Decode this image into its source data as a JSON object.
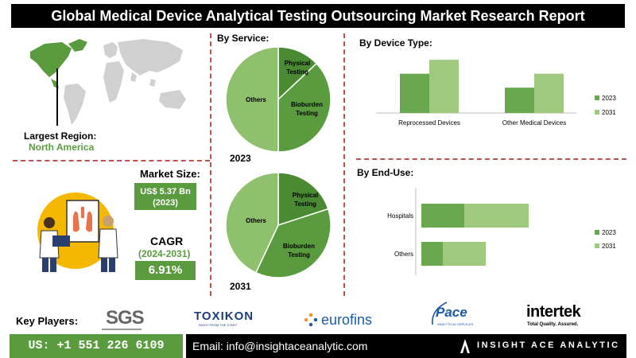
{
  "header": {
    "title": "Global Medical Device Analytical Testing Outsourcing Market Research Report"
  },
  "region": {
    "label": "Largest Region:",
    "value": "North America"
  },
  "market": {
    "size_label": "Market Size:",
    "size_value": "US$ 5.37 Bn",
    "size_year": "(2023)",
    "cagr_label": "CAGR",
    "cagr_period": "(2024-2031)",
    "cagr_value": "6.91%"
  },
  "colors": {
    "dark_green": "#5b9b40",
    "light_green": "#9ec97f",
    "mid_green": "#6aa84f",
    "red_dash": "#c0504d"
  },
  "chart_data": [
    {
      "type": "pie",
      "title": "By Service:",
      "subtitle": "2023",
      "labels": [
        "Physical Testing",
        "Bioburden Testing",
        "Others"
      ],
      "values": [
        13,
        37,
        50
      ]
    },
    {
      "type": "pie",
      "subtitle": "2031",
      "labels": [
        "Physical Testing",
        "Bioburden Testing",
        "Others"
      ],
      "values": [
        20,
        37,
        43
      ]
    },
    {
      "type": "bar",
      "title": "By  Device Type:",
      "categories": [
        "Reprocessed Devices",
        "Other Medical Devices"
      ],
      "series": [
        {
          "name": "2023",
          "values": [
            1.55,
            1.0
          ]
        },
        {
          "name": "2031",
          "values": [
            2.1,
            1.55
          ]
        }
      ],
      "legend": "right"
    },
    {
      "type": "bar",
      "orientation": "horizontal",
      "title": "By End-Use:",
      "categories": [
        "Hospitals",
        "Others"
      ],
      "series": [
        {
          "name": "2023",
          "values": [
            1.6,
            0.8
          ]
        },
        {
          "name": "2031",
          "values": [
            2.4,
            1.6
          ]
        }
      ],
      "stacked": true,
      "legend": "right"
    }
  ],
  "footer": {
    "key_players_label": "Key Players:",
    "players": [
      "SGS",
      "TOXIKON",
      "eurofins",
      "Pace",
      "intertek"
    ],
    "toxikon_tag": "RIGHT FROM THE START",
    "pace_tag": "ANALYTICAL SERVICES",
    "intertek_tag": "Total Quality. Assured.",
    "phone": "US: +1 551 226 6109",
    "email": "Email: info@insightaceanalytic.com",
    "brand": "INSIGHT ACE ANALYTIC"
  }
}
